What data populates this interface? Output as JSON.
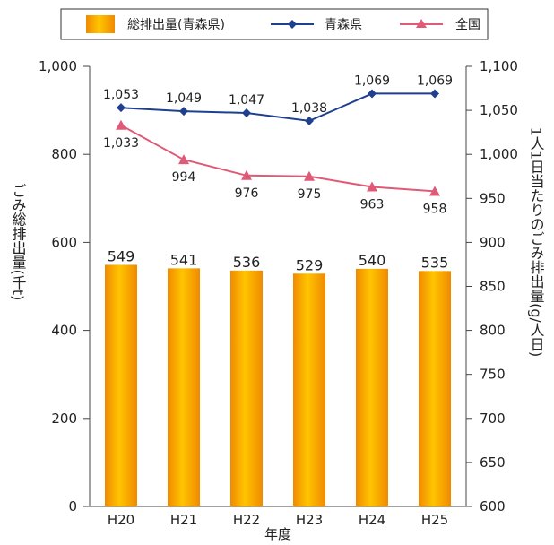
{
  "chart_data": {
    "type": "bar",
    "categories": [
      "H20",
      "H21",
      "H22",
      "H23",
      "H24",
      "H25"
    ],
    "xlabel": "年度",
    "ylabel": "ごみ総排出量(千t)",
    "y2label": "1人1日当たりのごみ排出量(g/人日)",
    "ylim": [
      0,
      1000
    ],
    "y2lim": [
      600,
      1100
    ],
    "yticks": [
      "0",
      "200",
      "400",
      "600",
      "800",
      "1,000"
    ],
    "y2ticks": [
      "600",
      "650",
      "700",
      "750",
      "800",
      "850",
      "900",
      "950",
      "1,000",
      "1,050",
      "1,100"
    ],
    "series": [
      {
        "name": "総排出量(青森県)",
        "type": "bar",
        "axis": "left",
        "values": [
          549,
          541,
          536,
          529,
          540,
          535
        ],
        "labels": [
          "549",
          "541",
          "536",
          "529",
          "540",
          "535"
        ],
        "color": "#F4A300"
      },
      {
        "name": "青森県",
        "type": "line",
        "axis": "right",
        "values": [
          1053,
          1049,
          1047,
          1038,
          1069,
          1069
        ],
        "labels": [
          "1,053",
          "1,049",
          "1,047",
          "1,038",
          "1,069",
          "1,069"
        ],
        "color": "#1F3F8F",
        "marker": "diamond"
      },
      {
        "name": "全国",
        "type": "line",
        "axis": "right",
        "values": [
          1033,
          994,
          976,
          975,
          963,
          958
        ],
        "labels": [
          "1,033",
          "994",
          "976",
          "975",
          "963",
          "958"
        ],
        "color": "#E05A78",
        "marker": "triangle"
      }
    ],
    "grid": false,
    "legend": "top-center"
  }
}
